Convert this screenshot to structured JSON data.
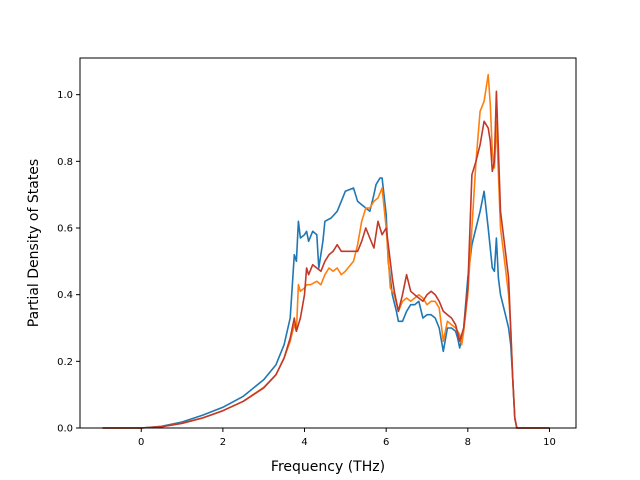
{
  "chart_data": {
    "type": "line",
    "title": "",
    "xlabel": "Frequency (THz)",
    "ylabel": "Partial Density of States",
    "xlim": [
      -1.5,
      10.65
    ],
    "ylim": [
      0.0,
      1.11
    ],
    "xticks": [
      0,
      2,
      4,
      6,
      8,
      10
    ],
    "yticks": [
      0.0,
      0.2,
      0.4,
      0.6,
      0.8,
      1.0
    ],
    "xtick_labels": [
      "0",
      "2",
      "4",
      "6",
      "8",
      "10"
    ],
    "ytick_labels": [
      "0.0",
      "0.2",
      "0.4",
      "0.6",
      "0.8",
      "1.0"
    ],
    "grid": false,
    "legend": "none",
    "series": [
      {
        "color": "#1f77b4",
        "points": [
          [
            -0.95,
            0
          ],
          [
            0,
            0
          ],
          [
            0.5,
            0.005
          ],
          [
            1,
            0.018
          ],
          [
            1.5,
            0.038
          ],
          [
            2,
            0.062
          ],
          [
            2.5,
            0.095
          ],
          [
            3,
            0.145
          ],
          [
            3.3,
            0.19
          ],
          [
            3.5,
            0.25
          ],
          [
            3.65,
            0.33
          ],
          [
            3.75,
            0.52
          ],
          [
            3.8,
            0.5
          ],
          [
            3.85,
            0.62
          ],
          [
            3.9,
            0.57
          ],
          [
            4.0,
            0.58
          ],
          [
            4.05,
            0.59
          ],
          [
            4.1,
            0.56
          ],
          [
            4.2,
            0.59
          ],
          [
            4.3,
            0.58
          ],
          [
            4.35,
            0.48
          ],
          [
            4.45,
            0.56
          ],
          [
            4.5,
            0.62
          ],
          [
            4.65,
            0.63
          ],
          [
            4.8,
            0.65
          ],
          [
            4.9,
            0.68
          ],
          [
            5.0,
            0.71
          ],
          [
            5.2,
            0.72
          ],
          [
            5.3,
            0.68
          ],
          [
            5.4,
            0.67
          ],
          [
            5.5,
            0.66
          ],
          [
            5.6,
            0.65
          ],
          [
            5.7,
            0.7
          ],
          [
            5.75,
            0.73
          ],
          [
            5.8,
            0.74
          ],
          [
            5.85,
            0.75
          ],
          [
            5.9,
            0.75
          ],
          [
            6.0,
            0.64
          ],
          [
            6.05,
            0.5
          ],
          [
            6.1,
            0.45
          ],
          [
            6.15,
            0.4
          ],
          [
            6.25,
            0.35
          ],
          [
            6.3,
            0.32
          ],
          [
            6.4,
            0.32
          ],
          [
            6.5,
            0.35
          ],
          [
            6.6,
            0.37
          ],
          [
            6.7,
            0.37
          ],
          [
            6.8,
            0.38
          ],
          [
            6.9,
            0.33
          ],
          [
            7.0,
            0.34
          ],
          [
            7.1,
            0.34
          ],
          [
            7.2,
            0.33
          ],
          [
            7.3,
            0.3
          ],
          [
            7.4,
            0.23
          ],
          [
            7.5,
            0.3
          ],
          [
            7.6,
            0.3
          ],
          [
            7.7,
            0.29
          ],
          [
            7.75,
            0.27
          ],
          [
            7.8,
            0.24
          ],
          [
            7.9,
            0.3
          ],
          [
            8.0,
            0.45
          ],
          [
            8.1,
            0.55
          ],
          [
            8.2,
            0.6
          ],
          [
            8.3,
            0.65
          ],
          [
            8.4,
            0.71
          ],
          [
            8.5,
            0.6
          ],
          [
            8.6,
            0.48
          ],
          [
            8.65,
            0.47
          ],
          [
            8.7,
            0.57
          ],
          [
            8.75,
            0.45
          ],
          [
            8.8,
            0.4
          ],
          [
            8.9,
            0.35
          ],
          [
            9.0,
            0.3
          ],
          [
            9.05,
            0.25
          ],
          [
            9.1,
            0.15
          ],
          [
            9.15,
            0.03
          ],
          [
            9.2,
            0.0
          ],
          [
            10.0,
            0
          ]
        ]
      },
      {
        "color": "#ff7f0e",
        "points": [
          [
            -0.95,
            0
          ],
          [
            0,
            0
          ],
          [
            0.5,
            0.004
          ],
          [
            1,
            0.014
          ],
          [
            1.5,
            0.03
          ],
          [
            2,
            0.052
          ],
          [
            2.5,
            0.08
          ],
          [
            3,
            0.122
          ],
          [
            3.3,
            0.16
          ],
          [
            3.5,
            0.21
          ],
          [
            3.65,
            0.26
          ],
          [
            3.75,
            0.31
          ],
          [
            3.8,
            0.29
          ],
          [
            3.85,
            0.43
          ],
          [
            3.9,
            0.41
          ],
          [
            4.0,
            0.42
          ],
          [
            4.05,
            0.43
          ],
          [
            4.15,
            0.43
          ],
          [
            4.3,
            0.44
          ],
          [
            4.4,
            0.43
          ],
          [
            4.5,
            0.46
          ],
          [
            4.6,
            0.48
          ],
          [
            4.7,
            0.47
          ],
          [
            4.8,
            0.48
          ],
          [
            4.9,
            0.46
          ],
          [
            5.0,
            0.47
          ],
          [
            5.2,
            0.5
          ],
          [
            5.3,
            0.55
          ],
          [
            5.4,
            0.62
          ],
          [
            5.5,
            0.66
          ],
          [
            5.6,
            0.66
          ],
          [
            5.7,
            0.68
          ],
          [
            5.8,
            0.69
          ],
          [
            5.9,
            0.72
          ],
          [
            6.0,
            0.6
          ],
          [
            6.1,
            0.42
          ],
          [
            6.2,
            0.4
          ],
          [
            6.3,
            0.35
          ],
          [
            6.4,
            0.38
          ],
          [
            6.5,
            0.39
          ],
          [
            6.6,
            0.38
          ],
          [
            6.7,
            0.39
          ],
          [
            6.8,
            0.4
          ],
          [
            6.9,
            0.39
          ],
          [
            7.0,
            0.37
          ],
          [
            7.1,
            0.38
          ],
          [
            7.2,
            0.38
          ],
          [
            7.3,
            0.36
          ],
          [
            7.4,
            0.26
          ],
          [
            7.5,
            0.32
          ],
          [
            7.6,
            0.31
          ],
          [
            7.7,
            0.3
          ],
          [
            7.8,
            0.28
          ],
          [
            7.85,
            0.25
          ],
          [
            7.9,
            0.29
          ],
          [
            8.0,
            0.4
          ],
          [
            8.1,
            0.6
          ],
          [
            8.2,
            0.8
          ],
          [
            8.3,
            0.95
          ],
          [
            8.4,
            0.98
          ],
          [
            8.5,
            1.06
          ],
          [
            8.55,
            0.97
          ],
          [
            8.6,
            0.83
          ],
          [
            8.65,
            0.78
          ],
          [
            8.7,
            0.92
          ],
          [
            8.8,
            0.6
          ],
          [
            8.9,
            0.5
          ],
          [
            9.0,
            0.4
          ],
          [
            9.05,
            0.3
          ],
          [
            9.1,
            0.15
          ],
          [
            9.15,
            0.03
          ],
          [
            9.2,
            0.0
          ],
          [
            10.0,
            0
          ]
        ]
      },
      {
        "color": "#c0392b",
        "points": [
          [
            -0.95,
            0
          ],
          [
            0,
            0
          ],
          [
            0.5,
            0.004
          ],
          [
            1,
            0.014
          ],
          [
            1.5,
            0.03
          ],
          [
            2,
            0.052
          ],
          [
            2.5,
            0.08
          ],
          [
            3,
            0.12
          ],
          [
            3.3,
            0.16
          ],
          [
            3.5,
            0.21
          ],
          [
            3.65,
            0.27
          ],
          [
            3.75,
            0.33
          ],
          [
            3.8,
            0.29
          ],
          [
            3.9,
            0.33
          ],
          [
            4.0,
            0.4
          ],
          [
            4.05,
            0.48
          ],
          [
            4.1,
            0.46
          ],
          [
            4.2,
            0.49
          ],
          [
            4.3,
            0.48
          ],
          [
            4.4,
            0.47
          ],
          [
            4.5,
            0.5
          ],
          [
            4.6,
            0.52
          ],
          [
            4.7,
            0.53
          ],
          [
            4.8,
            0.55
          ],
          [
            4.9,
            0.53
          ],
          [
            5.0,
            0.53
          ],
          [
            5.2,
            0.53
          ],
          [
            5.3,
            0.53
          ],
          [
            5.4,
            0.56
          ],
          [
            5.5,
            0.6
          ],
          [
            5.6,
            0.57
          ],
          [
            5.7,
            0.54
          ],
          [
            5.8,
            0.62
          ],
          [
            5.85,
            0.6
          ],
          [
            5.9,
            0.58
          ],
          [
            6.0,
            0.6
          ],
          [
            6.1,
            0.5
          ],
          [
            6.15,
            0.45
          ],
          [
            6.2,
            0.41
          ],
          [
            6.3,
            0.35
          ],
          [
            6.4,
            0.4
          ],
          [
            6.5,
            0.46
          ],
          [
            6.6,
            0.41
          ],
          [
            6.7,
            0.4
          ],
          [
            6.8,
            0.39
          ],
          [
            6.9,
            0.38
          ],
          [
            7.0,
            0.4
          ],
          [
            7.1,
            0.41
          ],
          [
            7.2,
            0.4
          ],
          [
            7.3,
            0.38
          ],
          [
            7.4,
            0.35
          ],
          [
            7.5,
            0.34
          ],
          [
            7.6,
            0.33
          ],
          [
            7.7,
            0.31
          ],
          [
            7.8,
            0.26
          ],
          [
            7.9,
            0.3
          ],
          [
            8.0,
            0.42
          ],
          [
            8.1,
            0.76
          ],
          [
            8.2,
            0.8
          ],
          [
            8.3,
            0.85
          ],
          [
            8.4,
            0.92
          ],
          [
            8.5,
            0.9
          ],
          [
            8.55,
            0.86
          ],
          [
            8.6,
            0.77
          ],
          [
            8.65,
            0.8
          ],
          [
            8.7,
            1.01
          ],
          [
            8.8,
            0.65
          ],
          [
            8.9,
            0.55
          ],
          [
            9.0,
            0.45
          ],
          [
            9.05,
            0.3
          ],
          [
            9.1,
            0.15
          ],
          [
            9.15,
            0.03
          ],
          [
            9.2,
            0.0
          ],
          [
            10.0,
            0
          ]
        ]
      }
    ]
  }
}
